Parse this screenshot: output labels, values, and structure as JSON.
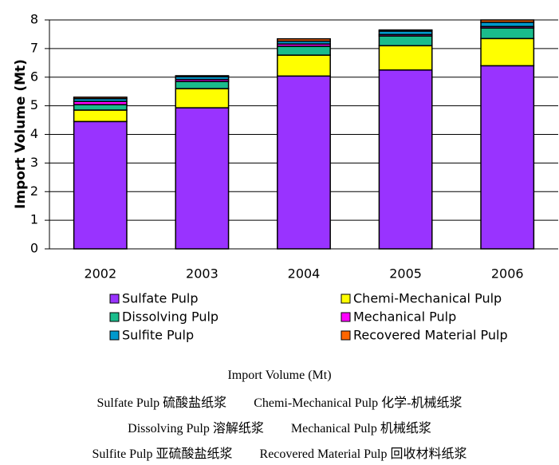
{
  "chart_data": {
    "type": "stacked_bar",
    "y_label": "Import Volume (Mt)",
    "categories": [
      "2002",
      "2003",
      "2004",
      "2005",
      "2006"
    ],
    "series": [
      {
        "name": "Sulfate Pulp",
        "color": "#9933ff",
        "values": [
          4.45,
          4.93,
          6.04,
          6.25,
          6.4
        ]
      },
      {
        "name": "Chemi-Mechanical Pulp",
        "color": "#ffff00",
        "values": [
          0.4,
          0.67,
          0.73,
          0.85,
          0.95
        ]
      },
      {
        "name": "Dissolving Pulp",
        "color": "#1abc8c",
        "values": [
          0.19,
          0.25,
          0.31,
          0.34,
          0.37
        ]
      },
      {
        "name": "Mechanical Pulp",
        "color": "#ff00ff",
        "values": [
          0.11,
          0.07,
          0.08,
          0.05,
          0.05
        ]
      },
      {
        "name": "Sulfite Pulp",
        "color": "#0099cc",
        "values": [
          0.1,
          0.1,
          0.1,
          0.12,
          0.15
        ]
      },
      {
        "name": "Recovered Material Pulp",
        "color": "#ff6600",
        "values": [
          0.05,
          0.03,
          0.08,
          0.04,
          0.08
        ]
      }
    ],
    "ylim": [
      0,
      8
    ],
    "yticks": [
      0,
      1,
      2,
      3,
      4,
      5,
      6,
      7,
      8
    ],
    "grid": true
  },
  "caption": {
    "title": "Import Volume (Mt)",
    "lines": [
      [
        "Sulfate Pulp 硫酸盐纸浆",
        "Chemi-Mechanical Pulp 化学-机械纸浆"
      ],
      [
        "Dissolving Pulp 溶解纸浆",
        "Mechanical Pulp 机械纸浆"
      ],
      [
        "Sulfite Pulp 亚硫酸盐纸浆",
        "Recovered Material Pulp 回收材料纸浆"
      ]
    ]
  }
}
